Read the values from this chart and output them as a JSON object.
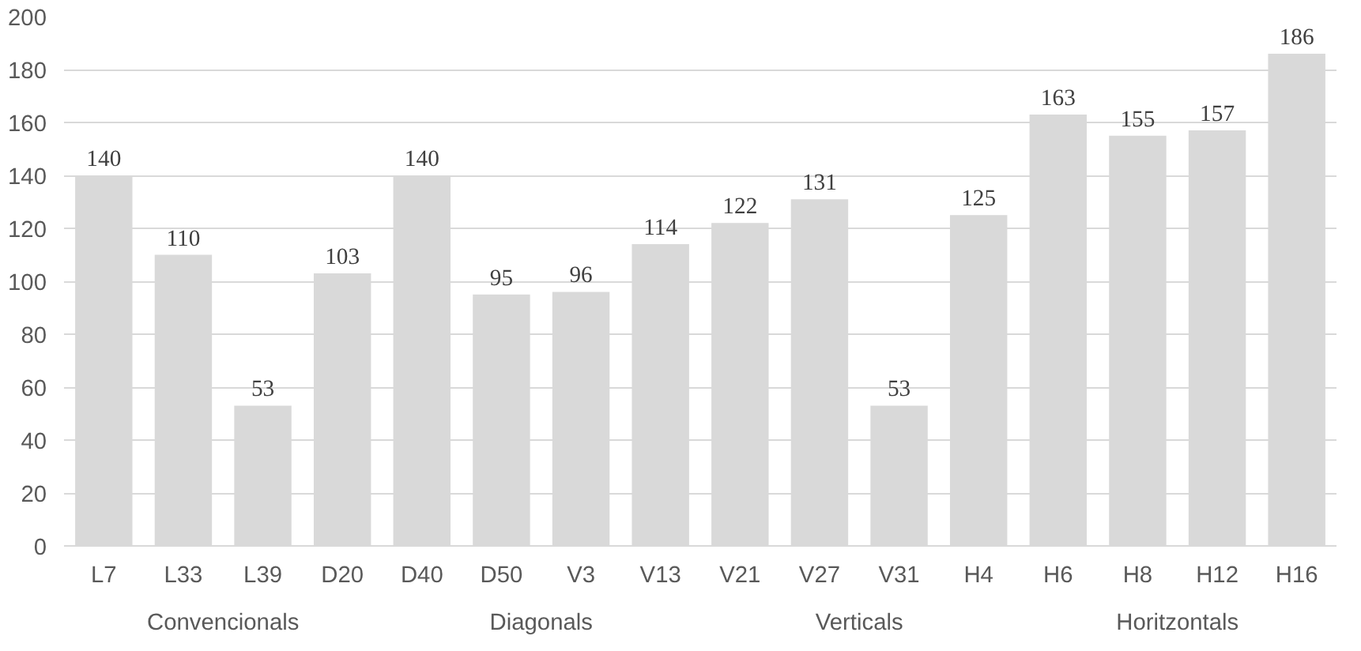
{
  "chart_data": {
    "type": "bar",
    "categories": [
      "L7",
      "L33",
      "L39",
      "D20",
      "D40",
      "D50",
      "V3",
      "V13",
      "V21",
      "V27",
      "V31",
      "H4",
      "H6",
      "H8",
      "H12",
      "H16"
    ],
    "values": [
      140,
      110,
      53,
      103,
      140,
      95,
      96,
      114,
      122,
      131,
      53,
      125,
      163,
      155,
      157,
      186
    ],
    "color": "#d9d9d9",
    "data_labels": true,
    "ylim": [
      0,
      200
    ],
    "yticks": [
      0,
      20,
      40,
      60,
      80,
      100,
      120,
      140,
      160,
      180,
      200
    ],
    "grid": "y",
    "annotations": [
      "Convencionals",
      "Diagonals",
      "Verticals",
      "Horitzontals"
    ]
  }
}
